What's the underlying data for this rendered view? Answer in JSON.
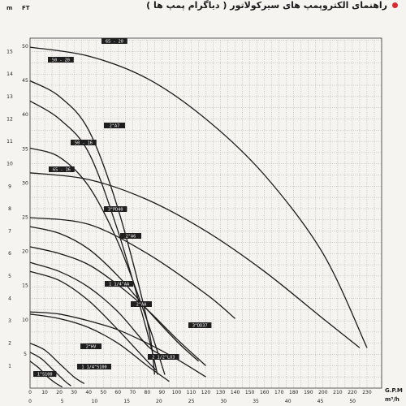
{
  "header": {
    "title": "راهنمای الکتروپمپ های سیرکولاتور ( دیاگرام پمپ ها )"
  },
  "colors": {
    "background": "#f6f4f1",
    "grid": "#9a9a9a",
    "curve": "#1a1a1a",
    "label_box": "#1f1f1f",
    "bullet": "#d92b2b"
  },
  "chart_data": {
    "type": "line",
    "title": "",
    "xlabel": "G.P.M",
    "xlabel_secondary": "m³/h",
    "ylabel_left": "m",
    "ylabel_right": "FT",
    "xlim": [
      0,
      240
    ],
    "ylim_m": [
      0,
      15.6
    ],
    "grid": true,
    "x_ticks_gpm": [
      "0",
      "10",
      "20",
      "30",
      "40",
      "50",
      "60",
      "70",
      "80",
      "90",
      "100",
      "110",
      "120",
      "130",
      "140",
      "150",
      "160",
      "170",
      "180",
      "190",
      "200",
      "210",
      "220",
      "230"
    ],
    "x_ticks_m3h": [
      "0",
      "5",
      "10",
      "15",
      "20",
      "25",
      "30",
      "35",
      "40",
      "45",
      "50"
    ],
    "y_ticks_m": [
      "1",
      "2",
      "3",
      "4",
      "5",
      "6",
      "7",
      "8",
      "9",
      "10",
      "11",
      "12",
      "13",
      "14",
      "15"
    ],
    "y_ticks_ft": [
      "5",
      "10",
      "15",
      "20",
      "25",
      "30",
      "35",
      "40",
      "45",
      "50"
    ],
    "series": [
      {
        "name": "65 - 20",
        "x": [
          0,
          40,
          80,
          120,
          160,
          200,
          230
        ],
        "y": [
          15.2,
          14.8,
          13.8,
          12.0,
          9.5,
          6.0,
          1.8
        ]
      },
      {
        "name": "50 - 20",
        "x": [
          0,
          20,
          40,
          60,
          80,
          85
        ],
        "y": [
          13.7,
          13.0,
          11.5,
          8.0,
          3.0,
          0.6
        ]
      },
      {
        "name": "2\"A7",
        "x": [
          0,
          20,
          40,
          60,
          80,
          87
        ],
        "y": [
          12.8,
          12.0,
          10.5,
          7.0,
          2.5,
          0.6
        ]
      },
      {
        "name": "50 - 16",
        "x": [
          0,
          20,
          40,
          60,
          80,
          92
        ],
        "y": [
          10.7,
          10.3,
          9.0,
          6.5,
          3.0,
          0.6
        ]
      },
      {
        "name": "65 - 16",
        "x": [
          0,
          40,
          80,
          120,
          160,
          200,
          225
        ],
        "y": [
          9.6,
          9.3,
          8.4,
          7.0,
          5.2,
          3.1,
          1.8
        ]
      },
      {
        "name": "3\"PD40",
        "x": [
          0,
          40,
          80,
          120,
          140
        ],
        "y": [
          7.6,
          7.3,
          6.0,
          4.2,
          3.1
        ]
      },
      {
        "name": "2\"A6",
        "x": [
          0,
          20,
          40,
          60,
          80,
          100,
          115
        ],
        "y": [
          7.2,
          6.9,
          6.2,
          5.0,
          3.5,
          2.1,
          1.2
        ]
      },
      {
        "name": "1 1/4\"AA",
        "x": [
          0,
          20,
          40,
          60,
          80,
          86
        ],
        "y": [
          5.2,
          4.8,
          3.9,
          2.6,
          1.2,
          0.8
        ]
      },
      {
        "name": "2\"AA",
        "x": [
          0,
          20,
          40,
          60,
          80,
          89
        ],
        "y": [
          5.6,
          5.2,
          4.5,
          3.4,
          1.9,
          1.5
        ]
      },
      {
        "name": "3\"DD37",
        "x": [
          0,
          20,
          40,
          60,
          80,
          100,
          120
        ],
        "y": [
          6.3,
          6.0,
          5.5,
          4.6,
          3.5,
          2.2,
          1.0
        ]
      },
      {
        "name": "2\"HV",
        "x": [
          0,
          20,
          40,
          60,
          80,
          95
        ],
        "y": [
          3.3,
          3.1,
          2.7,
          2.0,
          1.0,
          0.3
        ]
      },
      {
        "name": "2 1/2\"LO3",
        "x": [
          0,
          20,
          40,
          60,
          80,
          100,
          120
        ],
        "y": [
          3.4,
          3.3,
          3.0,
          2.6,
          2.0,
          1.3,
          0.5
        ]
      },
      {
        "name": "1 1/4\"S100",
        "x": [
          0,
          10,
          20,
          30,
          37
        ],
        "y": [
          2.0,
          1.7,
          1.1,
          0.5,
          0.2
        ]
      },
      {
        "name": "1\"S100",
        "x": [
          0,
          8,
          16,
          24,
          28
        ],
        "y": [
          1.6,
          1.3,
          0.8,
          0.3,
          0.1
        ]
      },
      {
        "name": "",
        "x": [
          0,
          6,
          12,
          18,
          22
        ],
        "y": [
          1.2,
          0.9,
          0.5,
          0.2,
          0.05
        ]
      }
    ],
    "legend_labels": [
      {
        "text": "65 - 20"
      },
      {
        "text": "50 - 20"
      },
      {
        "text": "2\"A7"
      },
      {
        "text": "50 - 16"
      },
      {
        "text": "65 - 16"
      },
      {
        "text": "3\"PD40"
      },
      {
        "text": "2\"A6"
      },
      {
        "text": "1 1/4\"AA"
      },
      {
        "text": "2\"AA"
      },
      {
        "text": "3\"DD37"
      },
      {
        "text": "2\"HV"
      },
      {
        "text": "2 1/2\"LO3"
      },
      {
        "text": "1 1/4\"S100"
      },
      {
        "text": "1\"S100"
      }
    ]
  }
}
